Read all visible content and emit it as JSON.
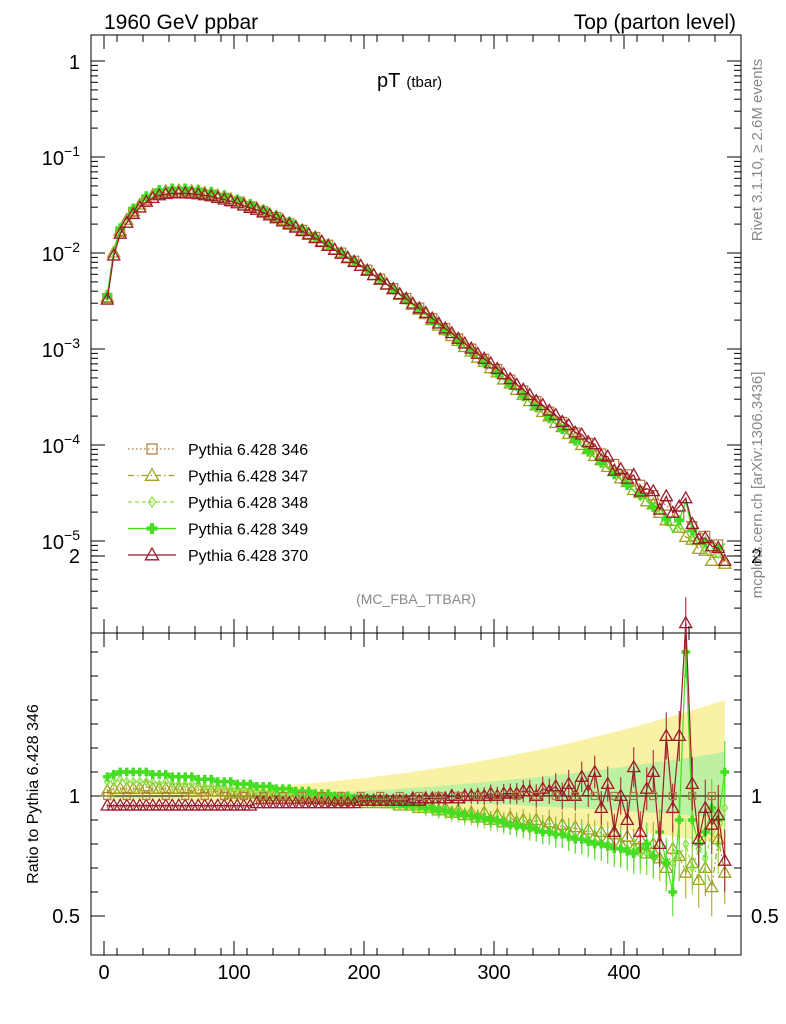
{
  "header": {
    "left": "1960 GeV ppbar",
    "right": "Top (parton level)"
  },
  "title_main": "pT",
  "title_sub": "(tbar)",
  "side_label_top": "Rivet 3.1.10, ≥ 2.6M events",
  "side_label_bottom": "mcplots.cern.ch [arXiv:1306.3436]",
  "analysis_label": "(MC_FBA_TTBAR)",
  "ratio_ylabel": "Ratio to Pythia 6.428 346",
  "main_yticks": [
    {
      "value": 1,
      "base": "1",
      "exp": ""
    },
    {
      "value": 0.1,
      "base": "10",
      "exp": "−1"
    },
    {
      "value": 0.01,
      "base": "10",
      "exp": "−2"
    },
    {
      "value": 0.001,
      "base": "10",
      "exp": "−3"
    },
    {
      "value": 0.0001,
      "base": "10",
      "exp": "−4"
    },
    {
      "value": 1e-05,
      "base": "10",
      "exp": "−5"
    }
  ],
  "ratio_yticks": [
    {
      "value": 2,
      "label": "2"
    },
    {
      "value": 1,
      "label": "1"
    },
    {
      "value": 0.5,
      "label": "0.5"
    }
  ],
  "xticks": [
    {
      "value": 0,
      "label": "0"
    },
    {
      "value": 100,
      "label": "100"
    },
    {
      "value": 200,
      "label": "200"
    },
    {
      "value": 300,
      "label": "300"
    },
    {
      "value": 400,
      "label": "400"
    }
  ],
  "chart_data": [
    {
      "type": "line",
      "yscale": "log",
      "xlim": [
        -10,
        490
      ],
      "ylim": [
        2e-07,
        2
      ],
      "legend_position": "bottom-left",
      "series": [
        {
          "name": "Pythia 6.428 346",
          "color": "#b07a3c",
          "marker": "square",
          "line": "dotted",
          "peak": 0.0435,
          "tail": 1.05e-05
        },
        {
          "name": "Pythia 6.428 347",
          "color": "#a0a020",
          "marker": "triangle",
          "line": "dashdot",
          "peak": 0.045,
          "tail": 1.05e-05
        },
        {
          "name": "Pythia 6.428 348",
          "color": "#88e040",
          "marker": "diamond",
          "line": "dashed",
          "peak": 0.046,
          "tail": 1.05e-05
        },
        {
          "name": "Pythia 6.428 349",
          "color": "#44dd22",
          "marker": "cross",
          "line": "solid",
          "peak": 0.047,
          "tail": 1.1e-05
        },
        {
          "name": "Pythia 6.428 370",
          "color": "#9b1b2a",
          "marker": "triangle",
          "line": "solid",
          "peak": 0.0415,
          "tail": 8e-06
        }
      ],
      "x_bins": [
        2.5,
        7.5,
        12.5,
        17.5,
        22.5,
        27.5,
        32.5,
        37.5,
        42.5,
        47.5,
        52.5,
        57.5,
        62.5,
        67.5,
        72.5,
        77.5,
        82.5,
        87.5,
        92.5,
        97.5,
        102.5,
        107.5,
        112.5,
        117.5,
        122.5,
        127.5,
        132.5,
        137.5,
        142.5,
        147.5,
        152.5,
        157.5,
        162.5,
        167.5,
        172.5,
        177.5,
        182.5,
        187.5,
        192.5,
        197.5,
        202.5,
        207.5,
        212.5,
        217.5,
        222.5,
        227.5,
        232.5,
        237.5,
        242.5,
        247.5,
        252.5,
        257.5,
        262.5,
        267.5,
        272.5,
        277.5,
        282.5,
        287.5,
        292.5,
        297.5,
        302.5,
        307.5,
        312.5,
        317.5,
        322.5,
        327.5,
        332.5,
        337.5,
        342.5,
        347.5,
        352.5,
        357.5,
        362.5,
        367.5,
        372.5,
        377.5,
        382.5,
        387.5,
        392.5,
        397.5,
        402.5,
        407.5,
        412.5,
        417.5,
        422.5,
        427.5,
        432.5,
        437.5,
        442.5,
        447.5,
        452.5,
        457.5,
        462.5,
        467.5,
        472.5,
        477.5
      ],
      "reference_values": [
        0.0034,
        0.0098,
        0.0165,
        0.0215,
        0.0265,
        0.031,
        0.0355,
        0.039,
        0.0415,
        0.0428,
        0.0435,
        0.0436,
        0.0435,
        0.0432,
        0.0425,
        0.0415,
        0.0405,
        0.039,
        0.0375,
        0.036,
        0.0343,
        0.0325,
        0.0307,
        0.029,
        0.0272,
        0.0254,
        0.0237,
        0.022,
        0.0204,
        0.0189,
        0.0174,
        0.016,
        0.0147,
        0.0134,
        0.0122,
        0.0111,
        0.0101,
        0.0091,
        0.0083,
        0.0075,
        0.0067,
        0.006,
        0.0054,
        0.0048,
        0.0043,
        0.0038,
        0.0034,
        0.003,
        0.0027,
        0.0024,
        0.0021,
        0.00186,
        0.00165,
        0.00146,
        0.00129,
        0.00114,
        0.00101,
        0.00089,
        0.00079,
        0.0007,
        0.00062,
        0.00054,
        0.00048,
        0.00042,
        0.00037,
        0.000325,
        0.000287,
        0.000253,
        0.000223,
        0.000197,
        0.000174,
        0.000153,
        0.000135,
        0.000119,
        0.000105,
        9.25e-05,
        8.15e-05,
        7.2e-05,
        6.35e-05,
        5.6e-05,
        4.95e-05,
        4.35e-05,
        3.85e-05,
        3.4e-05,
        3e-05,
        2.65e-05,
        2.34e-05,
        2.07e-05,
        1.83e-05,
        1.62e-05,
        1.43e-05,
        1.27e-05,
        1.13e-05,
        1e-05,
        9.2e-06,
        8.5e-06
      ],
      "ratios": {
        "Pythia 6.428 347": [
          1.02,
          1.03,
          1.03,
          1.03,
          1.03,
          1.03,
          1.04,
          1.03,
          1.03,
          1.03,
          1.03,
          1.03,
          1.03,
          1.02,
          1.03,
          1.02,
          1.02,
          1.02,
          1.02,
          1.01,
          1.01,
          1.02,
          1.01,
          1.01,
          1.0,
          1.0,
          1.01,
          1.0,
          1.0,
          1.0,
          0.99,
          0.99,
          0.99,
          0.99,
          0.99,
          0.98,
          0.98,
          0.99,
          0.98,
          0.98,
          0.97,
          0.98,
          0.97,
          0.97,
          0.97,
          0.96,
          0.97,
          0.96,
          0.95,
          0.96,
          0.95,
          0.94,
          0.95,
          0.93,
          0.94,
          0.92,
          0.93,
          0.91,
          0.93,
          0.9,
          0.92,
          0.89,
          0.91,
          0.89,
          0.9,
          0.88,
          0.9,
          0.87,
          0.89,
          0.86,
          0.88,
          0.85,
          0.87,
          0.84,
          0.86,
          0.83,
          0.85,
          0.82,
          0.84,
          0.8,
          0.83,
          0.78,
          0.82,
          0.76,
          0.8,
          0.74,
          0.7,
          0.78,
          0.75,
          0.68,
          0.72,
          0.65,
          0.7,
          0.62,
          0.82,
          0.68
        ],
        "Pythia 6.428 348": [
          1.06,
          1.06,
          1.07,
          1.06,
          1.06,
          1.06,
          1.06,
          1.06,
          1.05,
          1.06,
          1.05,
          1.05,
          1.05,
          1.05,
          1.05,
          1.04,
          1.04,
          1.04,
          1.04,
          1.03,
          1.03,
          1.03,
          1.03,
          1.02,
          1.02,
          1.02,
          1.02,
          1.01,
          1.01,
          1.01,
          1.0,
          1.0,
          1.0,
          1.0,
          0.99,
          0.99,
          0.99,
          0.99,
          0.98,
          0.98,
          0.98,
          0.97,
          0.97,
          0.97,
          0.96,
          0.96,
          0.96,
          0.95,
          0.95,
          0.94,
          0.94,
          0.93,
          0.93,
          0.92,
          0.92,
          0.91,
          0.91,
          0.9,
          0.9,
          0.89,
          0.89,
          0.88,
          0.88,
          0.87,
          0.87,
          0.86,
          0.86,
          0.85,
          0.85,
          0.84,
          0.84,
          0.83,
          0.83,
          0.82,
          0.82,
          0.81,
          0.8,
          0.8,
          0.79,
          0.78,
          0.78,
          0.77,
          0.76,
          0.76,
          0.75,
          0.74,
          0.73,
          0.72,
          0.75,
          0.8,
          0.7,
          0.78,
          0.74,
          0.85,
          0.8,
          0.95
        ],
        "Pythia 6.428 349": [
          1.08,
          1.09,
          1.1,
          1.1,
          1.1,
          1.1,
          1.1,
          1.09,
          1.09,
          1.09,
          1.08,
          1.08,
          1.08,
          1.08,
          1.07,
          1.07,
          1.07,
          1.06,
          1.06,
          1.06,
          1.05,
          1.05,
          1.05,
          1.04,
          1.04,
          1.04,
          1.03,
          1.03,
          1.03,
          1.02,
          1.02,
          1.02,
          1.01,
          1.01,
          1.01,
          1.0,
          1.0,
          1.0,
          0.99,
          0.99,
          0.99,
          0.98,
          0.98,
          0.98,
          0.97,
          0.97,
          0.96,
          0.96,
          0.96,
          0.95,
          0.95,
          0.94,
          0.94,
          0.93,
          0.93,
          0.92,
          0.92,
          0.91,
          0.91,
          0.9,
          0.9,
          0.89,
          0.88,
          0.88,
          0.87,
          0.87,
          0.86,
          0.85,
          0.85,
          0.84,
          0.84,
          0.83,
          0.82,
          0.82,
          0.81,
          0.8,
          0.8,
          0.79,
          0.78,
          0.78,
          0.77,
          0.76,
          0.78,
          0.8,
          0.75,
          0.85,
          0.72,
          0.6,
          0.9,
          1.6,
          0.9,
          0.8,
          0.85,
          0.95,
          0.9,
          1.1
        ],
        "Pythia 6.428 370": [
          0.96,
          0.96,
          0.96,
          0.96,
          0.96,
          0.96,
          0.96,
          0.96,
          0.96,
          0.96,
          0.96,
          0.96,
          0.96,
          0.96,
          0.96,
          0.96,
          0.96,
          0.96,
          0.96,
          0.96,
          0.96,
          0.96,
          0.96,
          0.97,
          0.97,
          0.97,
          0.97,
          0.97,
          0.97,
          0.97,
          0.97,
          0.97,
          0.97,
          0.97,
          0.97,
          0.97,
          0.97,
          0.97,
          0.97,
          0.98,
          0.98,
          0.98,
          0.98,
          0.98,
          0.98,
          0.98,
          0.98,
          0.99,
          0.98,
          0.99,
          0.99,
          0.99,
          0.99,
          1.0,
          0.99,
          1.0,
          1.0,
          1.0,
          1.0,
          1.01,
          1.0,
          1.01,
          1.01,
          1.01,
          1.02,
          1.02,
          1.0,
          1.03,
          1.02,
          1.04,
          1.0,
          1.05,
          1.0,
          1.08,
          1.02,
          1.1,
          0.95,
          1.05,
          0.85,
          1.0,
          0.9,
          1.12,
          0.85,
          1.03,
          1.1,
          0.8,
          1.25,
          0.95,
          1.25,
          1.72,
          1.05,
          0.82,
          0.95,
          0.88,
          0.92,
          0.73
        ]
      },
      "ratio_band": {
        "upper_start": 1.02,
        "upper_end": 1.4,
        "lower_start": 0.98,
        "lower_end": 0.8
      }
    }
  ]
}
